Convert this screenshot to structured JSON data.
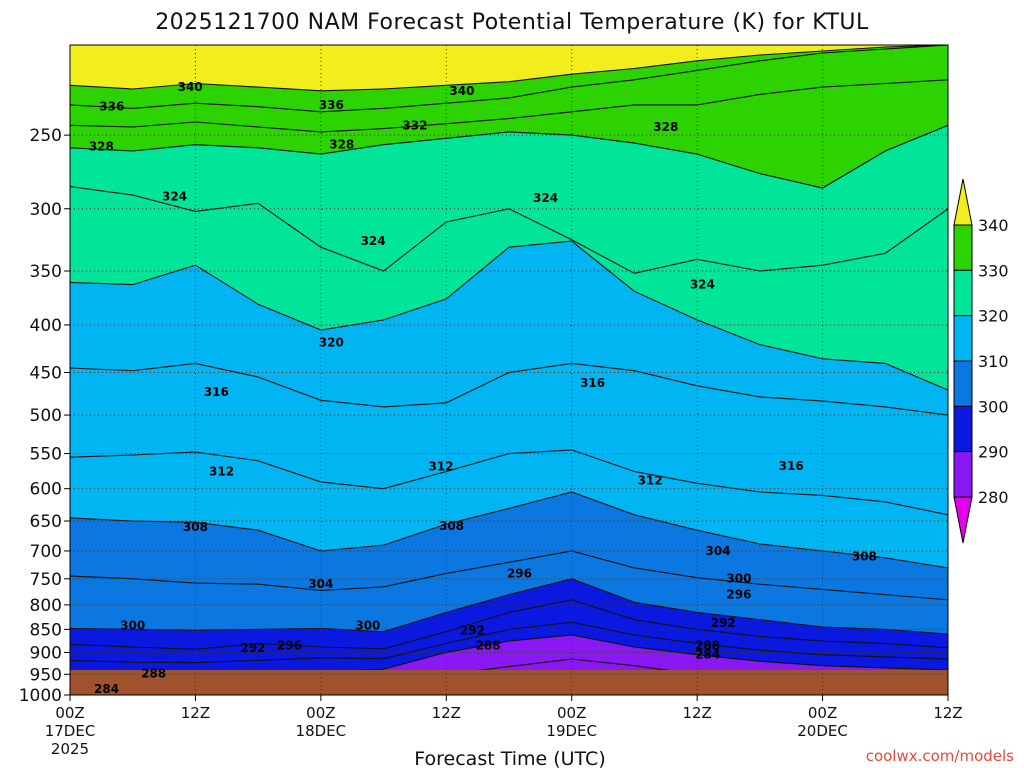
{
  "chart_data": {
    "type": "heatmap",
    "title": "2025121700 NAM Forecast Potential Temperature (K) for KTUL",
    "xlabel": "Forecast Time (UTC)",
    "ylabel": "",
    "credit": "coolwx.com/models",
    "x_ticks": [
      {
        "hour": 0,
        "line1": "00Z",
        "line2": "17DEC",
        "line3": "2025"
      },
      {
        "hour": 12,
        "line1": "12Z",
        "line2": "",
        "line3": ""
      },
      {
        "hour": 24,
        "line1": "00Z",
        "line2": "18DEC",
        "line3": ""
      },
      {
        "hour": 36,
        "line1": "12Z",
        "line2": "",
        "line3": ""
      },
      {
        "hour": 48,
        "line1": "00Z",
        "line2": "19DEC",
        "line3": ""
      },
      {
        "hour": 60,
        "line1": "12Z",
        "line2": "",
        "line3": ""
      },
      {
        "hour": 72,
        "line1": "00Z",
        "line2": "20DEC",
        "line3": ""
      },
      {
        "hour": 84,
        "line1": "12Z",
        "line2": "",
        "line3": ""
      }
    ],
    "xlim": [
      0,
      84
    ],
    "y_ticks": [
      "250",
      "300",
      "350",
      "400",
      "450",
      "500",
      "550",
      "600",
      "650",
      "700",
      "750",
      "800",
      "850",
      "900",
      "950",
      "1000"
    ],
    "y_tick_values": [
      250,
      300,
      350,
      400,
      450,
      500,
      550,
      600,
      650,
      700,
      750,
      800,
      850,
      900,
      950,
      1000
    ],
    "ylim": [
      200,
      1000
    ],
    "y_scale": "log",
    "grid": true,
    "colorbar": {
      "labels": [
        "340",
        "330",
        "320",
        "310",
        "300",
        "290",
        "280"
      ],
      "levels": [
        340,
        330,
        320,
        310,
        300,
        290,
        280
      ],
      "colors": [
        "#f2ee1e",
        "#2cd300",
        "#00e59a",
        "#00b5f2",
        "#0a78e0",
        "#0a18e0",
        "#8a18f2",
        "#e400e8"
      ]
    },
    "isentropes": [
      {
        "theta": 340,
        "p": [
          221,
          223,
          220,
          222,
          224,
          223,
          221,
          219,
          215,
          212,
          208,
          205,
          203,
          201,
          200
        ]
      },
      {
        "theta": 336,
        "p": [
          232,
          234,
          231,
          233,
          236,
          234,
          231,
          228,
          222,
          218,
          213,
          208,
          204,
          202,
          200
        ]
      },
      {
        "theta": 332,
        "p": [
          244,
          245,
          242,
          245,
          248,
          246,
          243,
          240,
          236,
          232,
          232,
          226,
          222,
          220,
          218
        ]
      },
      {
        "theta": 328,
        "p": [
          258,
          260,
          256,
          258,
          262,
          256,
          252,
          248,
          250,
          255,
          262,
          275,
          285,
          260,
          244
        ]
      },
      {
        "theta": 324,
        "p": [
          284,
          290,
          302,
          296,
          330,
          350,
          310,
          300,
          324,
          352,
          340,
          350,
          345,
          335,
          300
        ]
      },
      {
        "theta": 320,
        "p": [
          360,
          362,
          345,
          380,
          405,
          395,
          375,
          330,
          325,
          368,
          395,
          420,
          435,
          440,
          470
        ]
      },
      {
        "theta": 316,
        "p": [
          445,
          448,
          440,
          455,
          482,
          490,
          485,
          450,
          440,
          448,
          465,
          478,
          483,
          490,
          500
        ]
      },
      {
        "theta": 312,
        "p": [
          555,
          552,
          548,
          560,
          590,
          600,
          575,
          550,
          545,
          575,
          592,
          605,
          610,
          620,
          640
        ]
      },
      {
        "theta": 308,
        "p": [
          645,
          650,
          652,
          665,
          700,
          690,
          655,
          630,
          605,
          640,
          665,
          688,
          700,
          712,
          730
        ]
      },
      {
        "theta": 304,
        "p": [
          745,
          750,
          758,
          760,
          772,
          765,
          740,
          720,
          700,
          730,
          748,
          760,
          770,
          780,
          790
        ]
      },
      {
        "theta": 300,
        "p": [
          848,
          850,
          852,
          850,
          848,
          855,
          815,
          780,
          750,
          795,
          815,
          830,
          845,
          850,
          860
        ]
      },
      {
        "theta": 296,
        "p": [
          882,
          888,
          893,
          880,
          888,
          892,
          855,
          815,
          790,
          830,
          850,
          865,
          875,
          880,
          890
        ]
      },
      {
        "theta": 292,
        "p": [
          918,
          922,
          923,
          918,
          912,
          914,
          880,
          850,
          835,
          862,
          880,
          895,
          905,
          910,
          915
        ]
      },
      {
        "theta": 288,
        "p": [
          948,
          950,
          952,
          948,
          945,
          938,
          900,
          875,
          862,
          888,
          905,
          920,
          930,
          935,
          940
        ]
      },
      {
        "theta": 284,
        "p": [
          985,
          987,
          990,
          985,
          980,
          970,
          950,
          932,
          915,
          930,
          950,
          965,
          978,
          985,
          985
        ]
      }
    ],
    "contour_labels": [
      {
        "text": "340",
        "hour": 11.5,
        "p": 222
      },
      {
        "text": "340",
        "hour": 37.5,
        "p": 224
      },
      {
        "text": "336",
        "hour": 4,
        "p": 233
      },
      {
        "text": "336",
        "hour": 25,
        "p": 232
      },
      {
        "text": "332",
        "hour": 33,
        "p": 244
      },
      {
        "text": "328",
        "hour": 3,
        "p": 257
      },
      {
        "text": "328",
        "hour": 26,
        "p": 256
      },
      {
        "text": "328",
        "hour": 57,
        "p": 245
      },
      {
        "text": "324",
        "hour": 10,
        "p": 291
      },
      {
        "text": "324",
        "hour": 45.5,
        "p": 292
      },
      {
        "text": "324",
        "hour": 29,
        "p": 325
      },
      {
        "text": "324",
        "hour": 60.5,
        "p": 362
      },
      {
        "text": "320",
        "hour": 25,
        "p": 418
      },
      {
        "text": "316",
        "hour": 14,
        "p": 472
      },
      {
        "text": "316",
        "hour": 50,
        "p": 462
      },
      {
        "text": "316",
        "hour": 69,
        "p": 567
      },
      {
        "text": "312",
        "hour": 14.5,
        "p": 575
      },
      {
        "text": "312",
        "hour": 35.5,
        "p": 568
      },
      {
        "text": "312",
        "hour": 55.5,
        "p": 588
      },
      {
        "text": "308",
        "hour": 12,
        "p": 660
      },
      {
        "text": "308",
        "hour": 36.5,
        "p": 658
      },
      {
        "text": "308",
        "hour": 76,
        "p": 710
      },
      {
        "text": "304",
        "hour": 24,
        "p": 760
      },
      {
        "text": "304",
        "hour": 62,
        "p": 700
      },
      {
        "text": "300",
        "hour": 6,
        "p": 842
      },
      {
        "text": "300",
        "hour": 28.5,
        "p": 842
      },
      {
        "text": "300",
        "hour": 64,
        "p": 749
      },
      {
        "text": "296",
        "hour": 43,
        "p": 740
      },
      {
        "text": "296",
        "hour": 21,
        "p": 885
      },
      {
        "text": "296",
        "hour": 64,
        "p": 780
      },
      {
        "text": "292",
        "hour": 17.5,
        "p": 890
      },
      {
        "text": "292",
        "hour": 38.5,
        "p": 852
      },
      {
        "text": "292",
        "hour": 62.5,
        "p": 837
      },
      {
        "text": "288",
        "hour": 8,
        "p": 948
      },
      {
        "text": "288",
        "hour": 40,
        "p": 885
      },
      {
        "text": "288",
        "hour": 61,
        "p": 885
      },
      {
        "text": "284",
        "hour": 3.5,
        "p": 985
      },
      {
        "text": "284",
        "hour": 61,
        "p": 905
      }
    ]
  }
}
